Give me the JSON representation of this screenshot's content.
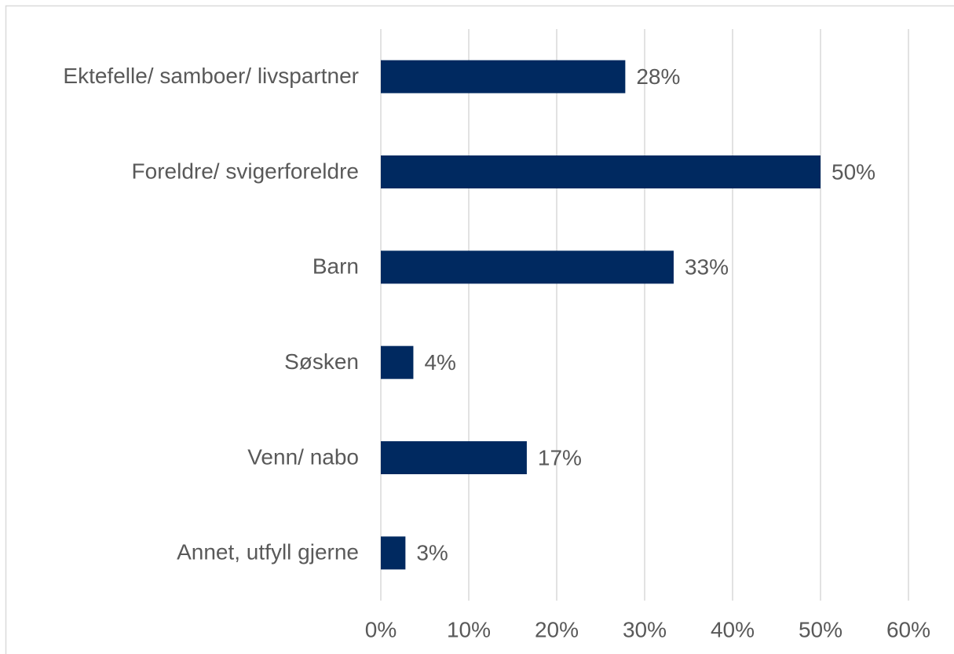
{
  "chart_data": {
    "type": "bar",
    "orientation": "horizontal",
    "categories": [
      "Ektefelle/ samboer/ livspartner",
      "Foreldre/ svigerforeldre",
      "Barn",
      "Søsken",
      "Venn/ nabo",
      "Annet, utfyll gjerne"
    ],
    "values": [
      27.8,
      50.0,
      33.3,
      3.7,
      16.6,
      2.8
    ],
    "value_labels": [
      "28%",
      "50%",
      "33%",
      "4%",
      "17%",
      "3%"
    ],
    "color": "#002960",
    "xlim": [
      0,
      60
    ],
    "xticks": [
      {
        "value": 0,
        "label": "0%"
      },
      {
        "value": 10,
        "label": "10%"
      },
      {
        "value": 20,
        "label": "20%"
      },
      {
        "value": 30,
        "label": "30%"
      },
      {
        "value": 40,
        "label": "40%"
      },
      {
        "value": 50,
        "label": "50%"
      },
      {
        "value": 60,
        "label": "60%"
      }
    ],
    "grid": true
  }
}
